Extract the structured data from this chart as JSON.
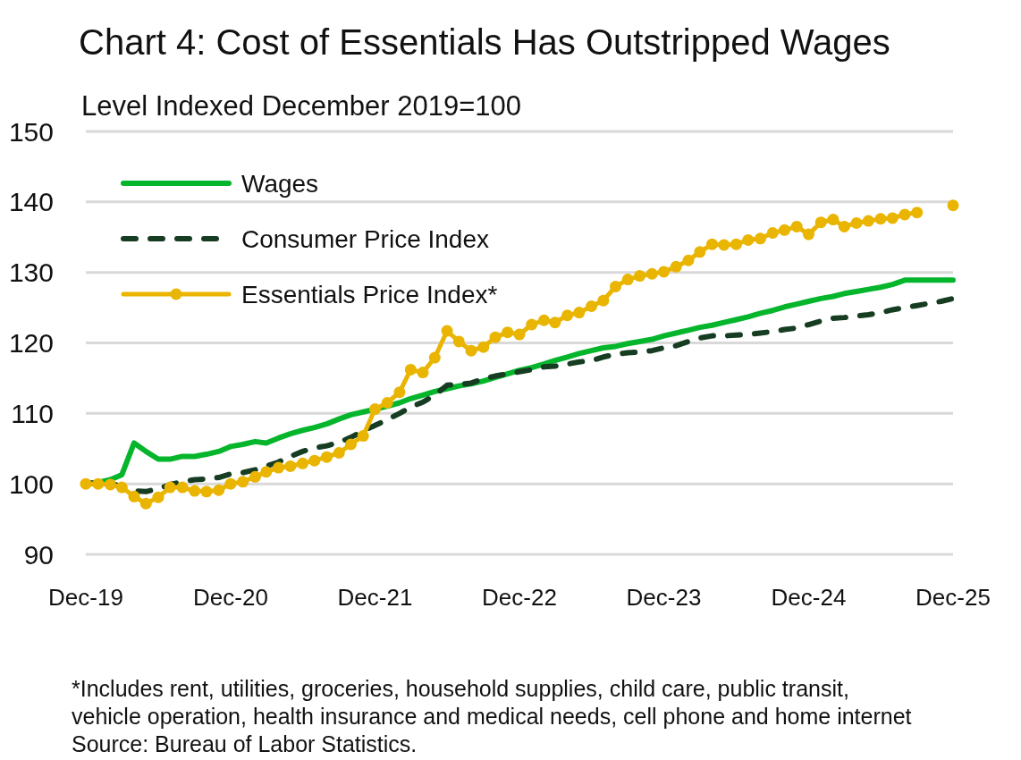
{
  "chart_data": {
    "type": "line",
    "title": "Chart 4: Cost of Essentials Has Outstripped Wages",
    "ylabel": "Level Indexed December 2019=100",
    "x": [
      "2019-12",
      "2020-01",
      "2020-02",
      "2020-03",
      "2020-04",
      "2020-05",
      "2020-06",
      "2020-07",
      "2020-08",
      "2020-09",
      "2020-10",
      "2020-11",
      "2020-12",
      "2021-01",
      "2021-02",
      "2021-03",
      "2021-04",
      "2021-05",
      "2021-06",
      "2021-07",
      "2021-08",
      "2021-09",
      "2021-10",
      "2021-11",
      "2021-12",
      "2022-01",
      "2022-02",
      "2022-03",
      "2022-04",
      "2022-05",
      "2022-06",
      "2022-07",
      "2022-08",
      "2022-09",
      "2022-10",
      "2022-11",
      "2022-12",
      "2023-01",
      "2023-02",
      "2023-03",
      "2023-04",
      "2023-05",
      "2023-06",
      "2023-07",
      "2023-08",
      "2023-09",
      "2023-10",
      "2023-11",
      "2023-12",
      "2024-01",
      "2024-02",
      "2024-03",
      "2024-04",
      "2024-05",
      "2024-06",
      "2024-07",
      "2024-08",
      "2024-09",
      "2024-10",
      "2024-11",
      "2024-12",
      "2025-01",
      "2025-02",
      "2025-03",
      "2025-04",
      "2025-05",
      "2025-06",
      "2025-07",
      "2025-08",
      "2025-09",
      "2025-10",
      "2025-11",
      "2025-12"
    ],
    "series": [
      {
        "name": "Wages",
        "color": "#05b52c",
        "line_style": "solid",
        "marker": "none",
        "values": [
          100,
          100.2,
          100.6,
          101.3,
          105.8,
          104.6,
          103.5,
          103.5,
          103.9,
          103.9,
          104.2,
          104.6,
          105.3,
          105.6,
          106.0,
          105.8,
          106.5,
          107.1,
          107.6,
          108.0,
          108.5,
          109.2,
          109.8,
          110.2,
          110.6,
          111.0,
          111.5,
          112.1,
          112.6,
          113.1,
          113.5,
          113.9,
          114.2,
          114.6,
          115.1,
          115.6,
          116.1,
          116.5,
          117.0,
          117.5,
          118.0,
          118.5,
          118.9,
          119.3,
          119.5,
          119.9,
          120.2,
          120.5,
          121.0,
          121.4,
          121.8,
          122.2,
          122.5,
          122.9,
          123.3,
          123.7,
          124.2,
          124.6,
          125.1,
          125.5,
          125.9,
          126.3,
          126.6,
          127.0,
          127.3,
          127.6,
          127.9,
          128.3,
          128.9,
          128.9,
          128.9,
          128.9,
          128.9
        ]
      },
      {
        "name": "Consumer Price Index",
        "color": "#163d22",
        "line_style": "dashed",
        "marker": "none",
        "values": [
          100,
          100.2,
          100.1,
          99.6,
          99.0,
          98.9,
          99.3,
          99.9,
          100.3,
          100.6,
          100.7,
          100.9,
          101.4,
          101.6,
          102.0,
          102.5,
          103.1,
          103.9,
          104.6,
          105.1,
          105.4,
          105.9,
          106.6,
          107.5,
          108.3,
          109.1,
          110.0,
          110.9,
          111.6,
          112.6,
          114.0,
          114.1,
          114.3,
          114.9,
          115.3,
          115.6,
          115.9,
          116.2,
          116.6,
          116.7,
          117.0,
          117.3,
          117.5,
          118.0,
          118.4,
          118.6,
          118.7,
          118.9,
          119.3,
          119.6,
          120.2,
          120.7,
          121.0,
          121.0,
          121.1,
          121.2,
          121.4,
          121.6,
          121.9,
          122.1,
          122.6,
          123.1,
          123.5,
          123.6,
          123.8,
          124.0,
          124.3,
          124.7,
          125.0,
          125.3,
          125.6,
          125.9,
          126.3
        ]
      },
      {
        "name": "Essentials Price Index*",
        "color": "#e9b500",
        "line_style": "solid",
        "marker": "circle",
        "values": [
          100,
          100.0,
          99.9,
          99.5,
          98.2,
          97.2,
          98.1,
          99.5,
          99.5,
          99.0,
          98.9,
          99.1,
          100.0,
          100.3,
          101.0,
          101.7,
          102.3,
          102.5,
          102.9,
          103.3,
          103.8,
          104.4,
          105.6,
          106.8,
          110.6,
          111.5,
          113.0,
          116.2,
          115.8,
          117.9,
          121.7,
          120.2,
          118.9,
          119.4,
          120.8,
          121.5,
          121.2,
          122.6,
          123.2,
          122.9,
          123.9,
          124.3,
          125.2,
          126.0,
          128.0,
          129.0,
          129.5,
          129.8,
          130.1,
          130.8,
          131.7,
          132.9,
          134.0,
          133.9,
          134.0,
          134.6,
          134.8,
          135.6,
          136.0,
          136.5,
          135.4,
          137.1,
          137.5,
          136.5,
          137.0,
          137.3,
          137.6,
          137.7,
          138.2,
          138.5,
          null,
          null,
          139.5
        ]
      }
    ],
    "xlim": [
      "2019-12",
      "2025-12"
    ],
    "xticks": [
      {
        "value": "2019-12",
        "label": "Dec-19"
      },
      {
        "value": "2020-12",
        "label": "Dec-20"
      },
      {
        "value": "2021-12",
        "label": "Dec-21"
      },
      {
        "value": "2022-12",
        "label": "Dec-22"
      },
      {
        "value": "2023-12",
        "label": "Dec-23"
      },
      {
        "value": "2024-12",
        "label": "Dec-24"
      },
      {
        "value": "2025-12",
        "label": "Dec-25"
      }
    ],
    "ylim": [
      90,
      150
    ],
    "yticks": [
      90,
      100,
      110,
      120,
      130,
      140,
      150
    ],
    "grid": "y",
    "legend": "top left",
    "annotations": [
      "*Includes rent, utilities, groceries, household supplies, child care, public transit,",
      "vehicle operation, health insurance and medical needs, cell phone and home internet",
      "Source: Bureau of Labor Statistics."
    ]
  }
}
